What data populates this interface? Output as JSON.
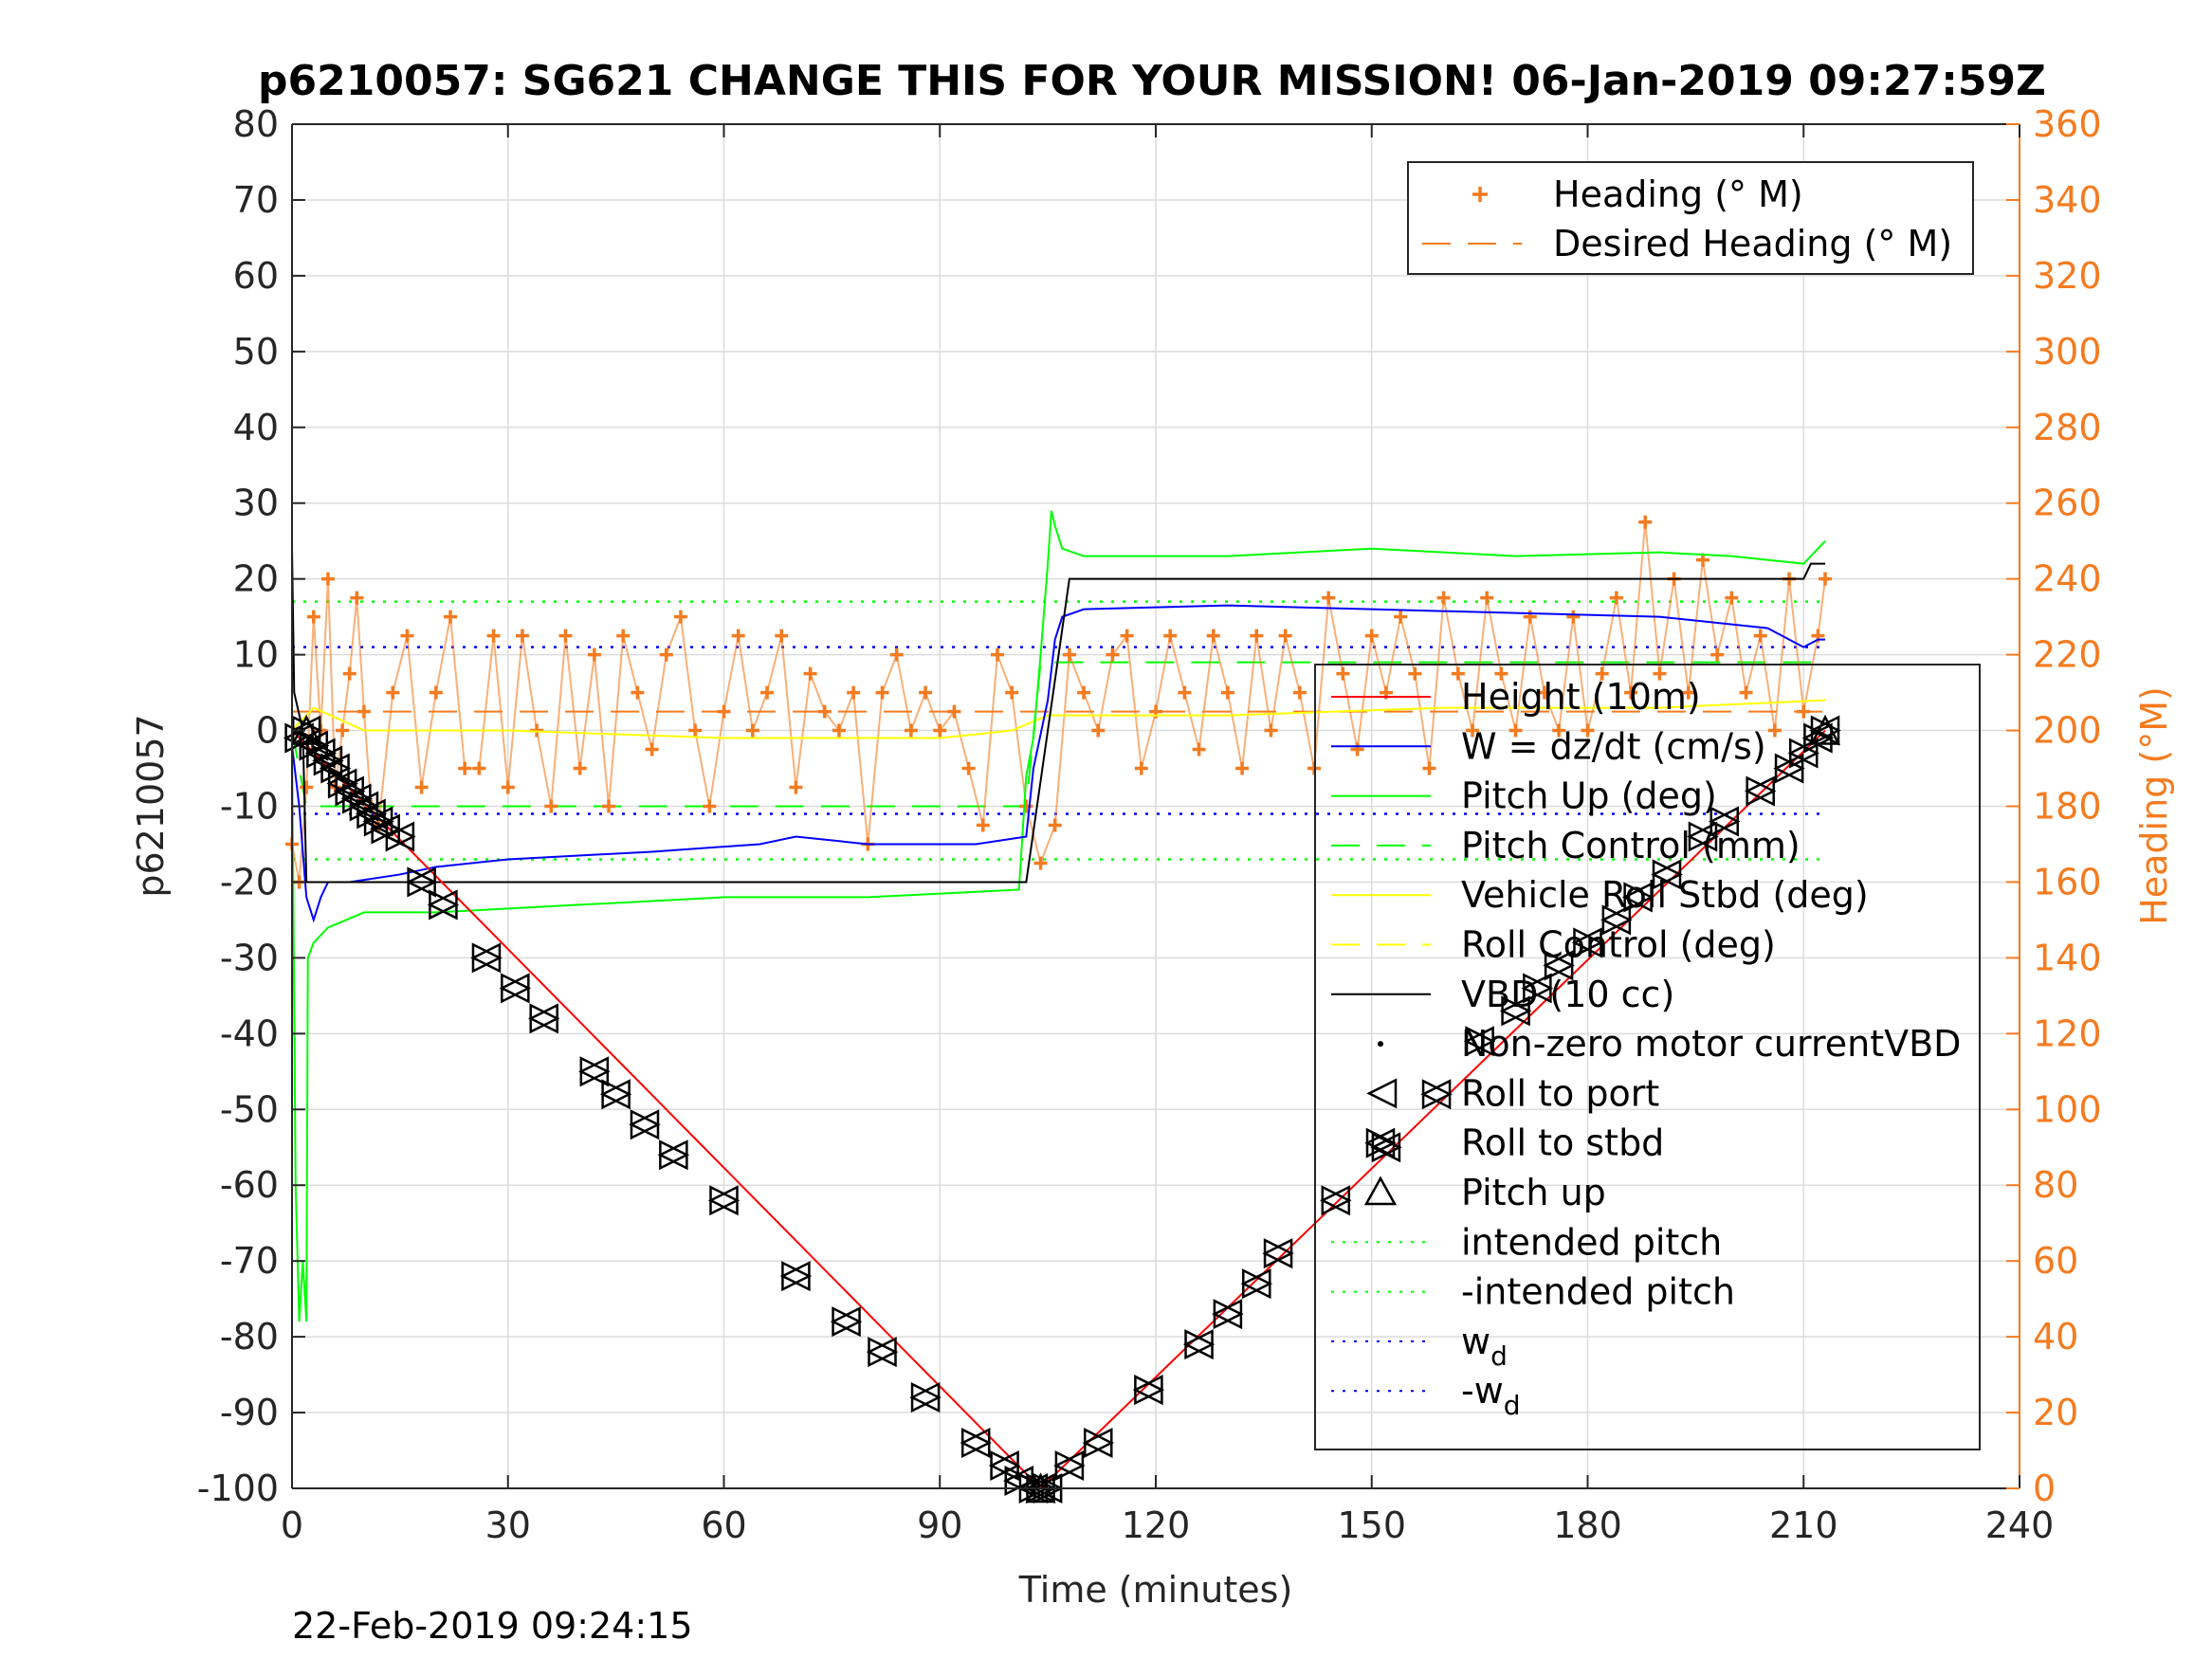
{
  "chart_data": {
    "type": "line",
    "title": "p6210057: SG621 CHANGE THIS FOR YOUR MISSION! 06-Jan-2019 09:27:59Z",
    "xlabel": "Time (minutes)",
    "ylabel": "p6210057",
    "ylabel_right": "Heading (°M)",
    "footer": "22-Feb-2019 09:24:15",
    "xlim": [
      0,
      240
    ],
    "ylim": [
      -100,
      80
    ],
    "ylim_right": [
      0,
      360
    ],
    "xticks": [
      0,
      30,
      60,
      90,
      120,
      150,
      180,
      210,
      240
    ],
    "yticks": [
      -100,
      -90,
      -80,
      -70,
      -60,
      -50,
      -40,
      -30,
      -20,
      -10,
      0,
      10,
      20,
      30,
      40,
      50,
      60,
      70,
      80
    ],
    "yticks_right": [
      0,
      20,
      40,
      60,
      80,
      100,
      120,
      140,
      160,
      180,
      200,
      220,
      240,
      260,
      280,
      300,
      320,
      340,
      360
    ],
    "grid": true,
    "colors": {
      "heading": "#f47b20",
      "depth": "#ff0000",
      "w": "#0000ff",
      "pitch": "#00ff00",
      "roll": "#ffff00",
      "vbd": "#000000",
      "right_axis": "#f47b20"
    },
    "legend_right_axis": [
      {
        "label": "Heading (° M)",
        "marker": "+",
        "color": "#f47b20"
      },
      {
        "label": "Desired Heading (° M)",
        "style": "dash",
        "color": "#f47b20"
      }
    ],
    "legend_left_axis": [
      {
        "label": "Height (10m)",
        "style": "solid",
        "color": "#ff0000"
      },
      {
        "label": "W = dz/dt (cm/s)",
        "style": "solid",
        "color": "#0000ff"
      },
      {
        "label": "Pitch Up (deg)",
        "style": "solid",
        "color": "#00ff00"
      },
      {
        "label": "Pitch Control (mm)",
        "style": "dash",
        "color": "#00ff00"
      },
      {
        "label": "Vehicle Roll Stbd (deg)",
        "style": "solid",
        "color": "#ffff00"
      },
      {
        "label": "Roll Control (deg)",
        "style": "dash",
        "color": "#ffff00"
      },
      {
        "label": "VBD (10 cc)",
        "style": "solid",
        "color": "#000000"
      },
      {
        "label": "Non-zero motor currentVBD",
        "marker": "dot",
        "color": "#000000"
      },
      {
        "label": "Roll to port",
        "marker": "tri-left",
        "color": "#000000"
      },
      {
        "label": "Roll to stbd",
        "marker": "tri-right",
        "color": "#000000"
      },
      {
        "label": "Pitch up",
        "marker": "tri-up",
        "color": "#000000"
      },
      {
        "label": "intended pitch",
        "style": "dot",
        "color": "#00ff00"
      },
      {
        "label": "-intended pitch",
        "style": "dot",
        "color": "#00ff00"
      },
      {
        "label": "w",
        "sub": "d",
        "style": "dot",
        "color": "#0000ff"
      },
      {
        "label": "-w",
        "sub": "d",
        "style": "dot",
        "color": "#0000ff"
      }
    ],
    "series": [
      {
        "name": "Height (10m)",
        "axis": "left",
        "style": "solid",
        "color": "#ff0000",
        "x": [
          0,
          104,
          213
        ],
        "y": [
          0,
          -100,
          0
        ]
      },
      {
        "name": "W = dz/dt (cm/s)",
        "axis": "left",
        "style": "solid",
        "color": "#0000ff",
        "x": [
          0,
          1,
          2,
          3,
          4,
          5,
          8,
          15,
          20,
          30,
          50,
          65,
          70,
          80,
          95,
          102,
          103,
          105,
          106,
          107,
          110,
          130,
          150,
          170,
          190,
          205,
          208,
          210,
          212,
          213
        ],
        "y": [
          -2,
          -10,
          -22,
          -25,
          -22,
          -20,
          -20,
          -19,
          -18,
          -17,
          -16,
          -15,
          -14,
          -15,
          -15,
          -14,
          -5,
          4,
          12,
          15,
          16,
          16.5,
          16,
          15.5,
          15,
          13.5,
          12,
          11,
          12,
          12
        ]
      },
      {
        "name": "Pitch Up (deg)",
        "axis": "left",
        "style": "solid",
        "color": "#00ff00",
        "x": [
          0,
          0.5,
          1,
          1.5,
          2,
          2.2,
          3,
          5,
          10,
          20,
          40,
          60,
          80,
          101,
          102,
          103,
          104,
          105,
          105.5,
          106,
          107,
          110,
          130,
          150,
          170,
          190,
          200,
          210,
          212,
          213
        ],
        "y": [
          0,
          -60,
          -78,
          -70,
          -78,
          -30,
          -28,
          -26,
          -24,
          -24,
          -23,
          -22,
          -22,
          -21,
          -6,
          -1,
          10,
          22,
          29,
          27,
          24,
          23,
          23,
          24,
          23,
          23.5,
          23,
          22,
          24,
          25
        ]
      },
      {
        "name": "Pitch Control (mm)",
        "axis": "left",
        "style": "dash",
        "color": "#00ff00",
        "x": [
          0,
          2,
          20,
          102,
          104,
          213
        ],
        "y": [
          0,
          -10,
          -10,
          -10,
          9,
          9
        ]
      },
      {
        "name": "Vehicle Roll Stbd (deg)",
        "axis": "left",
        "style": "solid",
        "color": "#ffff00",
        "x": [
          0,
          3,
          10,
          30,
          60,
          90,
          100,
          105,
          130,
          160,
          190,
          213
        ],
        "y": [
          0,
          3,
          0,
          0,
          -1,
          -1,
          0,
          2,
          2,
          3,
          3,
          4
        ]
      },
      {
        "name": "VBD (10 cc)",
        "axis": "left",
        "style": "solid",
        "color": "#000000",
        "x": [
          0,
          0.3,
          1.5,
          2,
          5,
          101,
          102,
          108,
          109,
          210,
          211,
          213
        ],
        "y": [
          24,
          5,
          0,
          -20,
          -20,
          -20,
          -20,
          20,
          20,
          20,
          22,
          22
        ]
      },
      {
        "name": "intended pitch",
        "axis": "left",
        "style": "dot",
        "color": "#00ff00",
        "x": [
          0,
          213
        ],
        "y": [
          17,
          17
        ]
      },
      {
        "name": "-intended pitch",
        "axis": "left",
        "style": "dot",
        "color": "#00ff00",
        "x": [
          0,
          213
        ],
        "y": [
          -17,
          -17
        ]
      },
      {
        "name": "w_d",
        "axis": "left",
        "style": "dot",
        "color": "#0000ff",
        "x": [
          0,
          213
        ],
        "y": [
          11,
          11
        ]
      },
      {
        "name": "-w_d",
        "axis": "left",
        "style": "dot",
        "color": "#0000ff",
        "x": [
          0,
          213
        ],
        "y": [
          -11,
          -11
        ]
      },
      {
        "name": "Desired Heading (° M)",
        "axis": "right",
        "style": "dash",
        "color": "#f47b20",
        "x": [
          0,
          213
        ],
        "y": [
          205,
          205
        ]
      },
      {
        "name": "Heading (° M)",
        "axis": "right",
        "marker": "+",
        "color": "#f47b20",
        "x": [
          0,
          1,
          2,
          3,
          4,
          5,
          6,
          7,
          8,
          9,
          10,
          11,
          12,
          14,
          16,
          18,
          20,
          22,
          24,
          26,
          28,
          30,
          32,
          34,
          36,
          38,
          40,
          42,
          44,
          46,
          48,
          50,
          52,
          54,
          56,
          58,
          60,
          62,
          64,
          66,
          68,
          70,
          72,
          74,
          76,
          78,
          80,
          82,
          84,
          86,
          88,
          90,
          92,
          94,
          96,
          98,
          100,
          102,
          104,
          106,
          108,
          110,
          112,
          114,
          116,
          118,
          120,
          122,
          124,
          126,
          128,
          130,
          132,
          134,
          136,
          138,
          140,
          142,
          144,
          146,
          148,
          150,
          152,
          154,
          156,
          158,
          160,
          162,
          164,
          166,
          168,
          170,
          172,
          174,
          176,
          178,
          180,
          182,
          184,
          186,
          188,
          190,
          192,
          194,
          196,
          198,
          200,
          202,
          204,
          206,
          208,
          210,
          212,
          213
        ],
        "y": [
          170,
          160,
          185,
          230,
          200,
          240,
          185,
          200,
          215,
          235,
          205,
          180,
          175,
          210,
          225,
          185,
          210,
          230,
          190,
          190,
          225,
          185,
          225,
          200,
          180,
          225,
          190,
          220,
          180,
          225,
          210,
          195,
          220,
          230,
          200,
          180,
          205,
          225,
          200,
          210,
          225,
          185,
          215,
          205,
          200,
          210,
          170,
          210,
          220,
          200,
          210,
          200,
          205,
          190,
          175,
          220,
          210,
          180,
          165,
          175,
          220,
          210,
          200,
          220,
          225,
          190,
          205,
          225,
          210,
          195,
          225,
          210,
          190,
          225,
          200,
          225,
          210,
          190,
          235,
          215,
          195,
          225,
          210,
          230,
          215,
          190,
          235,
          215,
          200,
          235,
          215,
          200,
          230,
          210,
          200,
          230,
          200,
          215,
          235,
          210,
          255,
          215,
          240,
          210,
          245,
          220,
          235,
          210,
          225,
          200,
          240,
          205,
          225,
          240
        ]
      }
    ],
    "attitude_markers": {
      "x": [
        1,
        2,
        3,
        4,
        5,
        6,
        7,
        8,
        9,
        10,
        11,
        12,
        13,
        15,
        18,
        21,
        27,
        31,
        35,
        42,
        45,
        49,
        53,
        60,
        70,
        77,
        82,
        88,
        95,
        99,
        101,
        103,
        104,
        105,
        108,
        112,
        119,
        126,
        130,
        134,
        137,
        145,
        152,
        159,
        165,
        170,
        173,
        176,
        180,
        184,
        187,
        191,
        196,
        199,
        204,
        208,
        210,
        212,
        213
      ],
      "y": [
        -1,
        0,
        -2,
        -3,
        -4,
        -5,
        -7,
        -8,
        -9,
        -10,
        -11,
        -12,
        -13,
        -14,
        -20,
        -23,
        -30,
        -34,
        -38,
        -45,
        -48,
        -52,
        -56,
        -62,
        -72,
        -78,
        -82,
        -88,
        -94,
        -97,
        -99,
        -100,
        -100,
        -100,
        -97,
        -94,
        -87,
        -81,
        -77,
        -73,
        -69,
        -62,
        -55,
        -48,
        -41,
        -37,
        -34,
        -31,
        -28,
        -25,
        -22,
        -19,
        -14,
        -12,
        -8,
        -5,
        -3,
        -1,
        0
      ]
    }
  }
}
